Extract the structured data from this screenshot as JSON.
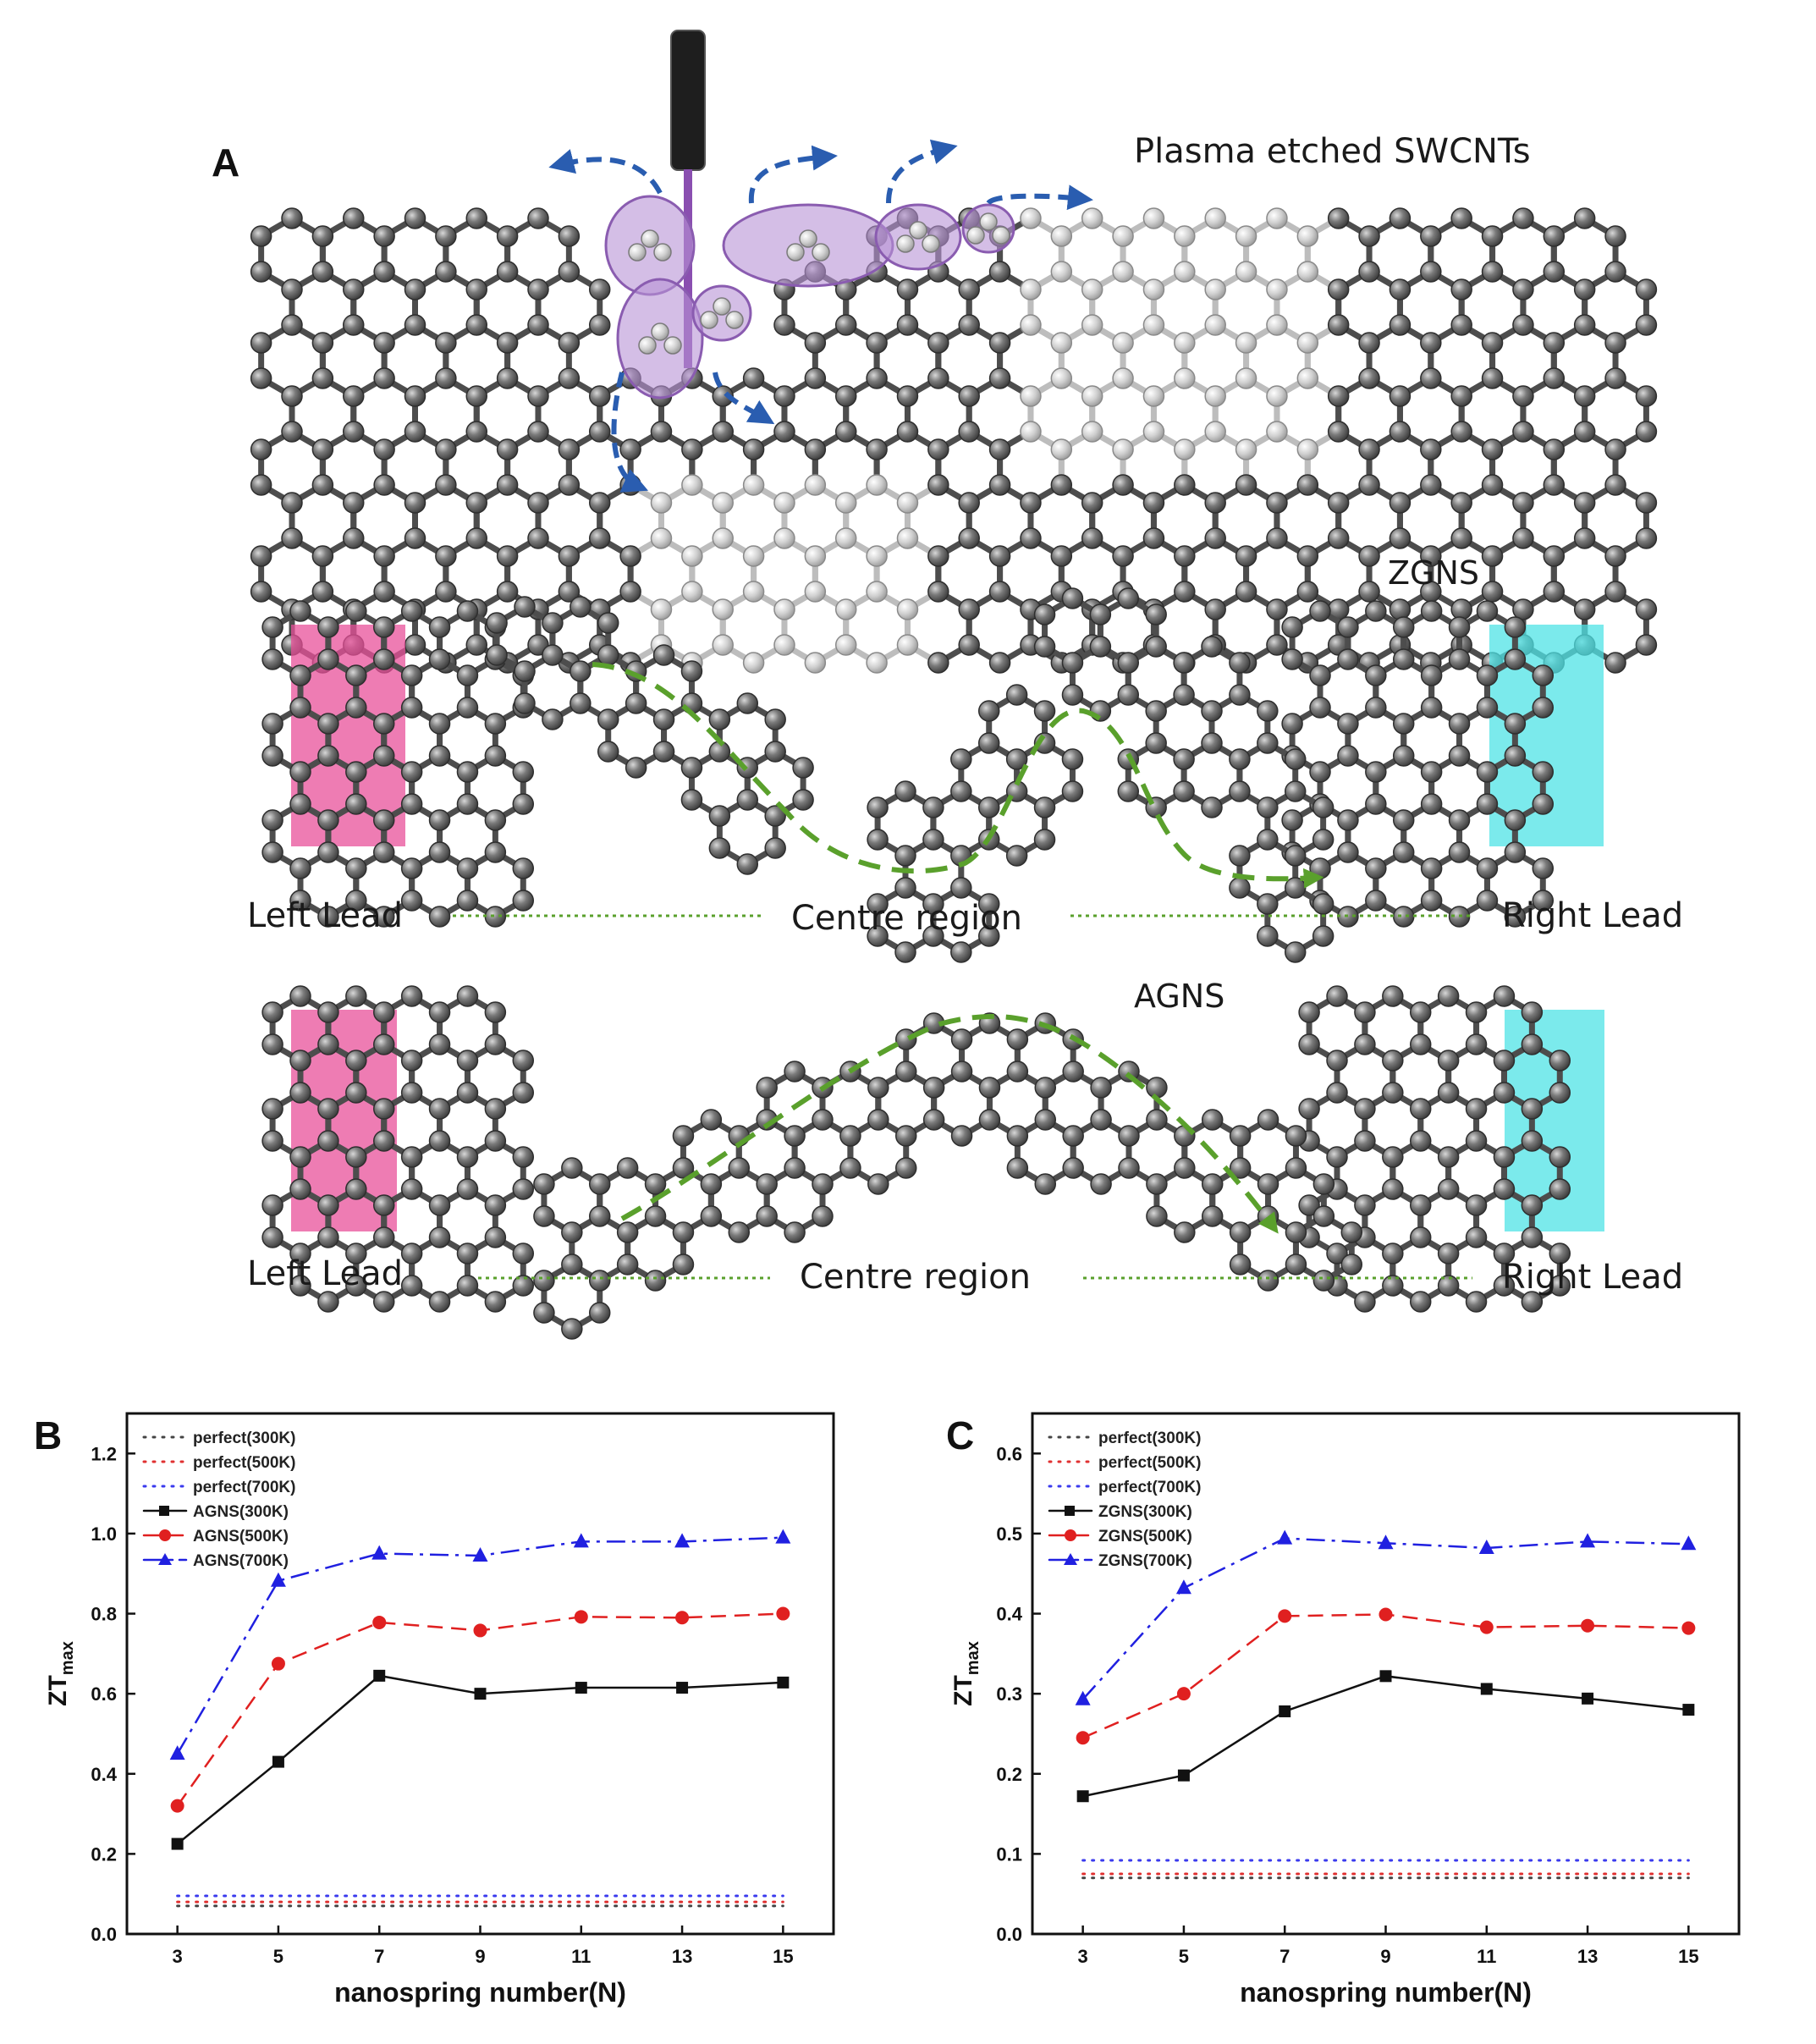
{
  "panel_a": {
    "letter": "A",
    "title_label": "Plasma etched SWCNTs",
    "zgns_label": "ZGNS",
    "agns_label": "AGNS",
    "left_lead": "Left Lead",
    "centre_region": "Centre region",
    "right_lead": "Right Lead",
    "colors": {
      "atom": "#6a6a6a",
      "bond": "#4d4d4d",
      "plasma": "#9b6fc0",
      "arrow": "#2a5db0",
      "path": "#5aa02c",
      "left_lead": "#e8509a",
      "right_lead": "#4fe3e6"
    }
  },
  "chart_data": [
    {
      "type": "line",
      "panel": "B",
      "ylabel_main": "ZT",
      "ylabel_sub": "max",
      "xlabel": "nanospring number(N)",
      "x": [
        3,
        5,
        7,
        9,
        11,
        13,
        15
      ],
      "xlim": [
        2,
        16
      ],
      "ylim": [
        0.0,
        1.3
      ],
      "yticks": [
        "0.0",
        "0.2",
        "0.4",
        "0.6",
        "0.8",
        "1.0",
        "1.2"
      ],
      "xticks": [
        "3",
        "5",
        "7",
        "9",
        "11",
        "13",
        "15"
      ],
      "legend_position": "top-left",
      "series": [
        {
          "name": "perfect(300K)",
          "values": [
            0.07,
            0.07,
            0.07,
            0.07,
            0.07,
            0.07,
            0.07
          ],
          "color": "#444444",
          "style": "dotted",
          "marker": "none"
        },
        {
          "name": "perfect(500K)",
          "values": [
            0.08,
            0.08,
            0.08,
            0.08,
            0.08,
            0.08,
            0.08
          ],
          "color": "#e03030",
          "style": "dotted",
          "marker": "none"
        },
        {
          "name": "perfect(700K)",
          "values": [
            0.095,
            0.095,
            0.095,
            0.095,
            0.095,
            0.095,
            0.095
          ],
          "color": "#3a3aee",
          "style": "dotted",
          "marker": "none"
        },
        {
          "name": "AGNS(300K)",
          "values": [
            0.225,
            0.43,
            0.645,
            0.6,
            0.615,
            0.615,
            0.628
          ],
          "color": "#111111",
          "style": "solid",
          "marker": "square"
        },
        {
          "name": "AGNS(500K)",
          "values": [
            0.32,
            0.675,
            0.778,
            0.758,
            0.792,
            0.79,
            0.8
          ],
          "color": "#e02020",
          "style": "dashed",
          "marker": "circle"
        },
        {
          "name": "AGNS(700K)",
          "values": [
            0.45,
            0.882,
            0.95,
            0.945,
            0.98,
            0.98,
            0.99
          ],
          "color": "#2020e0",
          "style": "dashdot",
          "marker": "triangle"
        }
      ]
    },
    {
      "type": "line",
      "panel": "C",
      "ylabel_main": "ZT",
      "ylabel_sub": "max",
      "xlabel": "nanospring number(N)",
      "x": [
        3,
        5,
        7,
        9,
        11,
        13,
        15
      ],
      "xlim": [
        2,
        16
      ],
      "ylim": [
        0.0,
        0.65
      ],
      "yticks": [
        "0.0",
        "0.1",
        "0.2",
        "0.3",
        "0.4",
        "0.5",
        "0.6"
      ],
      "xticks": [
        "3",
        "5",
        "7",
        "9",
        "11",
        "13",
        "15"
      ],
      "legend_position": "top-left",
      "series": [
        {
          "name": "perfect(300K)",
          "values": [
            0.07,
            0.07,
            0.07,
            0.07,
            0.07,
            0.07,
            0.07
          ],
          "color": "#444444",
          "style": "dotted",
          "marker": "none"
        },
        {
          "name": "perfect(500K)",
          "values": [
            0.075,
            0.075,
            0.075,
            0.075,
            0.075,
            0.075,
            0.075
          ],
          "color": "#e03030",
          "style": "dotted",
          "marker": "none"
        },
        {
          "name": "perfect(700K)",
          "values": [
            0.092,
            0.092,
            0.092,
            0.092,
            0.092,
            0.092,
            0.092
          ],
          "color": "#3a3aee",
          "style": "dotted",
          "marker": "none"
        },
        {
          "name": "ZGNS(300K)",
          "values": [
            0.172,
            0.198,
            0.278,
            0.322,
            0.306,
            0.294,
            0.28
          ],
          "color": "#111111",
          "style": "solid",
          "marker": "square"
        },
        {
          "name": "ZGNS(500K)",
          "values": [
            0.245,
            0.3,
            0.397,
            0.399,
            0.383,
            0.385,
            0.382
          ],
          "color": "#e02020",
          "style": "dashed",
          "marker": "circle"
        },
        {
          "name": "ZGNS(700K)",
          "values": [
            0.293,
            0.432,
            0.494,
            0.488,
            0.482,
            0.49,
            0.487
          ],
          "color": "#2020e0",
          "style": "dashdot",
          "marker": "triangle"
        }
      ]
    }
  ]
}
